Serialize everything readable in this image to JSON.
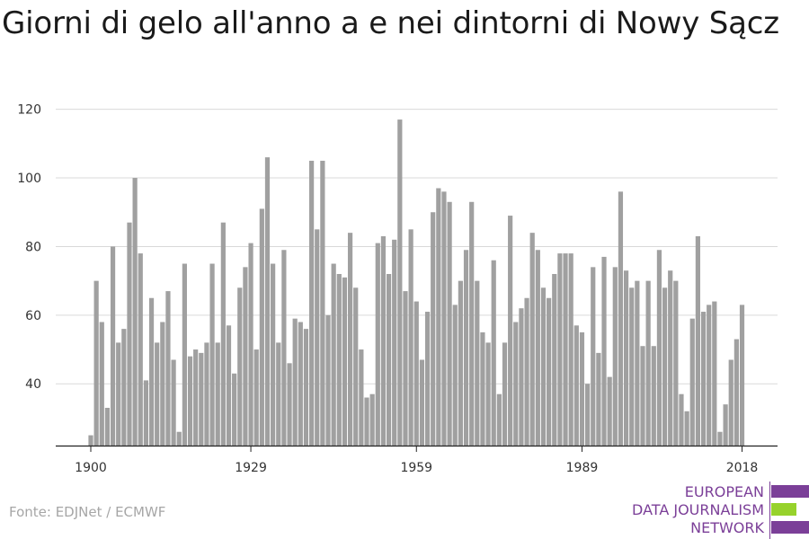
{
  "title": "Giorni di gelo all'anno a e nei dintorni di Nowy Sącz",
  "source": "Fonte: EDJNet / ECMWF",
  "logo": {
    "lines": [
      "EUROPEAN",
      "DATA JOURNALISM",
      "NETWORK"
    ],
    "colors": {
      "purple": "#7b3f98",
      "green": "#97d22c"
    }
  },
  "colors": {
    "bar": "#a0a0a0",
    "grid": "#d9d9d9",
    "axis": "#222222"
  },
  "chart_data": {
    "type": "bar",
    "title": "Giorni di gelo all'anno a e nei dintorni di Nowy Sącz",
    "xlabel": "",
    "ylabel": "",
    "ylim": [
      22,
      122
    ],
    "yticks": [
      40,
      60,
      80,
      100,
      120
    ],
    "xticks": [
      1900,
      1929,
      1959,
      1989,
      2018
    ],
    "grid": true,
    "x": [
      1900,
      1901,
      1902,
      1903,
      1904,
      1905,
      1906,
      1907,
      1908,
      1909,
      1910,
      1911,
      1912,
      1913,
      1914,
      1915,
      1916,
      1917,
      1918,
      1919,
      1920,
      1921,
      1922,
      1923,
      1924,
      1925,
      1926,
      1927,
      1928,
      1929,
      1930,
      1931,
      1932,
      1933,
      1934,
      1935,
      1936,
      1937,
      1938,
      1939,
      1940,
      1941,
      1942,
      1943,
      1944,
      1945,
      1946,
      1947,
      1948,
      1949,
      1950,
      1951,
      1952,
      1953,
      1954,
      1955,
      1956,
      1957,
      1958,
      1959,
      1960,
      1961,
      1962,
      1963,
      1964,
      1965,
      1966,
      1967,
      1968,
      1969,
      1970,
      1971,
      1972,
      1973,
      1974,
      1975,
      1976,
      1977,
      1978,
      1979,
      1980,
      1981,
      1982,
      1983,
      1984,
      1985,
      1986,
      1987,
      1988,
      1989,
      1990,
      1991,
      1992,
      1993,
      1994,
      1995,
      1996,
      1997,
      1998,
      1999,
      2000,
      2001,
      2002,
      2003,
      2004,
      2005,
      2006,
      2007,
      2008,
      2009,
      2010,
      2011,
      2012,
      2013,
      2014,
      2015,
      2016,
      2017,
      2018
    ],
    "values": [
      25,
      70,
      58,
      33,
      80,
      52,
      56,
      87,
      100,
      78,
      41,
      65,
      52,
      58,
      67,
      47,
      26,
      75,
      48,
      50,
      49,
      52,
      75,
      52,
      87,
      57,
      43,
      68,
      74,
      81,
      50,
      91,
      106,
      75,
      52,
      79,
      46,
      59,
      58,
      56,
      105,
      85,
      105,
      60,
      75,
      72,
      71,
      84,
      68,
      50,
      36,
      37,
      81,
      83,
      72,
      82,
      117,
      67,
      85,
      64,
      47,
      61,
      90,
      97,
      96,
      93,
      63,
      70,
      79,
      93,
      70,
      55,
      52,
      76,
      37,
      52,
      89,
      58,
      62,
      65,
      84,
      79,
      68,
      65,
      72,
      78,
      78,
      78,
      57,
      55,
      40,
      74,
      49,
      77,
      42,
      74,
      96,
      73,
      68,
      70,
      51,
      70,
      51,
      79,
      68,
      73,
      70,
      37,
      32,
      59,
      83,
      61,
      63,
      64,
      26,
      34,
      47,
      53,
      63
    ]
  }
}
